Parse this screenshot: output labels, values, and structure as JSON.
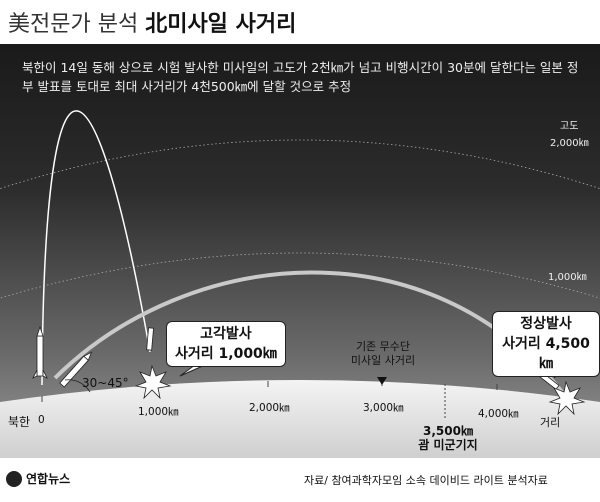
{
  "header": {
    "brand": "美전문가 분석",
    "title": "北미사일 사거리"
  },
  "description": "북한이 14일 동해 상으로 시험 발사한 미사일의 고도가 2천㎞가 넘고 비행시간이 30분에 달한다는 일본 정부 발표를 토대로 최대 사거리가 4천500㎞에 달할 것으로 추정",
  "labels": {
    "altitude": "고도",
    "alt_2000": "2,000㎞",
    "alt_1000": "1,000㎞",
    "angle": "30~45°",
    "north_korea": "북한",
    "distance": "거리"
  },
  "callouts": {
    "lofted": {
      "line1": "고각발사",
      "line2": "사거리 1,000㎞"
    },
    "standard": {
      "line1": "정상발사",
      "line2": "사거리 4,500㎞"
    }
  },
  "notes": {
    "previous": {
      "line1": "기존 무수단",
      "line2": "미사일 사거리"
    },
    "guam": {
      "line1": "3,500㎞",
      "line2": "괌 미군기지"
    }
  },
  "axis": {
    "ticks": [
      "0",
      "1,000㎞",
      "2,000㎞",
      "3,000㎞",
      "4,000㎞"
    ]
  },
  "footer": {
    "logo": "연합뉴스",
    "source": "자료/ 참여과학자모임 소속 데이비드 라이트 분석자료"
  }
}
